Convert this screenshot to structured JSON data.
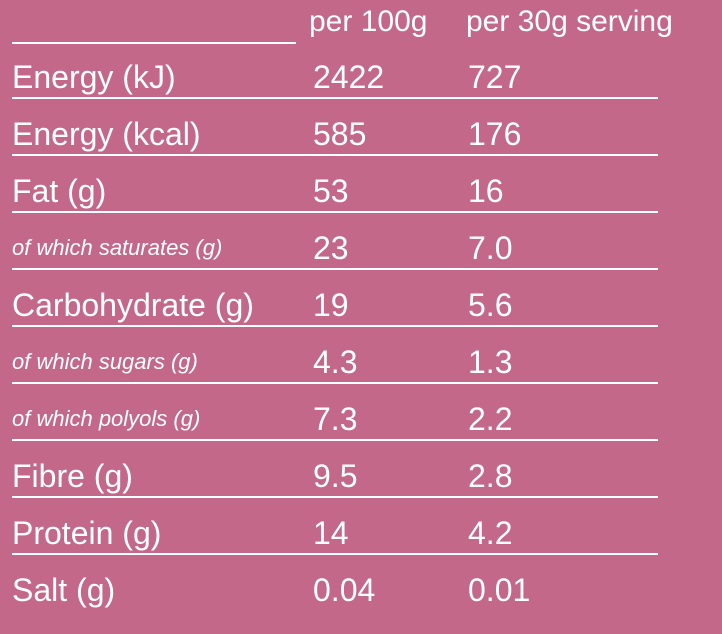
{
  "header": {
    "col1": "per 100g",
    "col2": "per 30g serving"
  },
  "rows": [
    {
      "label": "Energy (kJ)",
      "per100": "2422",
      "perServing": "727",
      "sub": false
    },
    {
      "label": "Energy (kcal)",
      "per100": "585",
      "perServing": "176",
      "sub": false
    },
    {
      "label": "Fat (g)",
      "per100": "53",
      "perServing": "16",
      "sub": false
    },
    {
      "label": "of which saturates (g)",
      "per100": "23",
      "perServing": "7.0",
      "sub": true
    },
    {
      "label": "Carbohydrate (g)",
      "per100": "19",
      "perServing": "5.6",
      "sub": false
    },
    {
      "label": "of which sugars (g)",
      "per100": "4.3",
      "perServing": "1.3",
      "sub": true
    },
    {
      "label": "of which polyols (g)",
      "per100": "7.3",
      "perServing": "2.2",
      "sub": true
    },
    {
      "label": "Fibre (g)",
      "per100": "9.5",
      "perServing": "2.8",
      "sub": false
    },
    {
      "label": "Protein (g)",
      "per100": "14",
      "perServing": "4.2",
      "sub": false
    },
    {
      "label": "Salt (g)",
      "per100": "0.04",
      "perServing": "0.01",
      "sub": false
    }
  ],
  "colors": {
    "background": "#c4688a",
    "text": "#ffffff"
  }
}
